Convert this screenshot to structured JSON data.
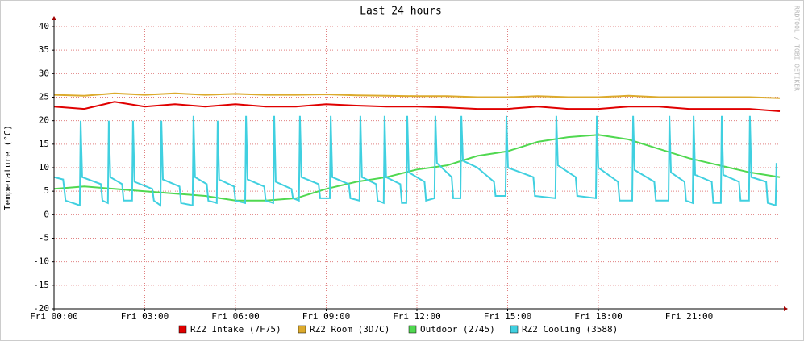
{
  "chart_data": {
    "type": "line",
    "title": "Last 24 hours",
    "ylabel": "Temperature (°C)",
    "watermark": "RRDTOOL / TOBI OETIKER",
    "xlim": [
      0,
      24
    ],
    "xticks": [
      {
        "value": 0,
        "label": "Fri 00:00"
      },
      {
        "value": 3,
        "label": "Fri 03:00"
      },
      {
        "value": 6,
        "label": "Fri 06:00"
      },
      {
        "value": 9,
        "label": "Fri 09:00"
      },
      {
        "value": 12,
        "label": "Fri 12:00"
      },
      {
        "value": 15,
        "label": "Fri 15:00"
      },
      {
        "value": 18,
        "label": "Fri 18:00"
      },
      {
        "value": 21,
        "label": "Fri 21:00"
      }
    ],
    "ylim": [
      -20,
      40
    ],
    "yticks": [
      -20,
      -15,
      -10,
      -5,
      0,
      5,
      10,
      15,
      20,
      25,
      30,
      35,
      40
    ],
    "grid": true,
    "series": [
      {
        "name": "RZ2 Intake (7F75)",
        "color": "#e00000",
        "x": [
          0,
          1,
          2,
          3,
          4,
          5,
          6,
          7,
          8,
          9,
          10,
          11,
          12,
          13,
          14,
          15,
          16,
          17,
          18,
          19,
          20,
          21,
          22,
          23,
          24
        ],
        "values": [
          23,
          22.5,
          24,
          23,
          23.5,
          23,
          23.5,
          23,
          23,
          23.5,
          23.2,
          23,
          23,
          22.8,
          22.5,
          22.5,
          23,
          22.5,
          22.5,
          23,
          23,
          22.5,
          22.5,
          22.5,
          22
        ]
      },
      {
        "name": "RZ2 Room (3D7C)",
        "color": "#dcaa2c",
        "x": [
          0,
          1,
          2,
          3,
          4,
          5,
          6,
          7,
          8,
          9,
          10,
          11,
          12,
          13,
          14,
          15,
          16,
          17,
          18,
          19,
          20,
          21,
          22,
          23,
          24
        ],
        "values": [
          25.5,
          25.3,
          25.8,
          25.5,
          25.8,
          25.5,
          25.7,
          25.5,
          25.5,
          25.6,
          25.4,
          25.3,
          25.2,
          25.2,
          25,
          25,
          25.2,
          25,
          25,
          25.3,
          25,
          25,
          25,
          25,
          24.8
        ]
      },
      {
        "name": "Outdoor (2745)",
        "color": "#50d850",
        "x": [
          0,
          1,
          2,
          3,
          4,
          5,
          6,
          7,
          8,
          9,
          10,
          11,
          12,
          13,
          14,
          15,
          16,
          17,
          18,
          19,
          20,
          21,
          22,
          23,
          24
        ],
        "values": [
          5.5,
          6,
          5.5,
          5,
          4.5,
          4,
          3,
          3,
          3.5,
          5.5,
          7,
          8,
          9.6,
          10.5,
          12.5,
          13.5,
          15.5,
          16.5,
          17,
          16,
          14,
          12,
          10.5,
          9,
          8
        ]
      },
      {
        "name": "RZ2 Cooling (3588)",
        "color": "#40d0e0",
        "x": [
          0,
          0.3,
          0.38,
          0.85,
          0.88,
          0.93,
          1.55,
          1.6,
          1.78,
          1.81,
          1.86,
          2.25,
          2.3,
          2.58,
          2.61,
          2.66,
          3.25,
          3.3,
          3.52,
          3.55,
          3.6,
          4.15,
          4.2,
          4.58,
          4.61,
          4.66,
          5.05,
          5.1,
          5.38,
          5.41,
          5.46,
          5.95,
          6.0,
          6.32,
          6.35,
          6.4,
          6.95,
          7.0,
          7.25,
          7.28,
          7.33,
          7.85,
          7.9,
          8.1,
          8.13,
          8.18,
          8.75,
          8.8,
          9.12,
          9.15,
          9.2,
          9.75,
          9.8,
          10.1,
          10.13,
          10.18,
          10.65,
          10.7,
          10.9,
          10.93,
          10.98,
          11.45,
          11.5,
          11.65,
          11.68,
          11.73,
          12.25,
          12.3,
          12.58,
          12.61,
          12.66,
          13.15,
          13.2,
          13.44,
          13.47,
          13.52,
          14.0,
          14.55,
          14.6,
          14.93,
          14.96,
          15.01,
          15.85,
          15.9,
          16.58,
          16.61,
          16.66,
          17.25,
          17.3,
          17.92,
          17.95,
          18.0,
          18.65,
          18.7,
          19.12,
          19.15,
          19.2,
          19.85,
          19.9,
          20.32,
          20.35,
          20.4,
          20.85,
          20.9,
          21.12,
          21.15,
          21.2,
          21.75,
          21.8,
          22.05,
          22.08,
          22.13,
          22.65,
          22.7,
          22.98,
          23.01,
          23.06,
          23.55,
          23.6,
          23.86,
          23.89
        ],
        "values": [
          8,
          7.5,
          3,
          2,
          20,
          8,
          6.5,
          3,
          2.5,
          20,
          8,
          6.5,
          3,
          3,
          20,
          7,
          5.5,
          3,
          2,
          20,
          7.5,
          6,
          2.5,
          2,
          21,
          8,
          6.5,
          3,
          2.5,
          20,
          7.5,
          6,
          3,
          2.5,
          21,
          7.5,
          6,
          3,
          2.5,
          21,
          7,
          5.5,
          3.5,
          3,
          21,
          8,
          6.5,
          3.5,
          3.5,
          21,
          8,
          6.5,
          3.5,
          3,
          21,
          8,
          6.5,
          3,
          2.5,
          21,
          8,
          6.5,
          2.5,
          2.5,
          21,
          9,
          7,
          3,
          3.5,
          21,
          11,
          8,
          3.5,
          3.5,
          21,
          11.5,
          10,
          7,
          4,
          4,
          21,
          10,
          8,
          4,
          3.5,
          21,
          10.5,
          8,
          4,
          3.5,
          21,
          10,
          7,
          3,
          3,
          21,
          9.5,
          7,
          3,
          3,
          21,
          9,
          7,
          3,
          2.5,
          21,
          8.5,
          7,
          2.5,
          2.5,
          21,
          8.5,
          7,
          3,
          3,
          21,
          8,
          7,
          2.5,
          2,
          11
        ]
      }
    ]
  }
}
